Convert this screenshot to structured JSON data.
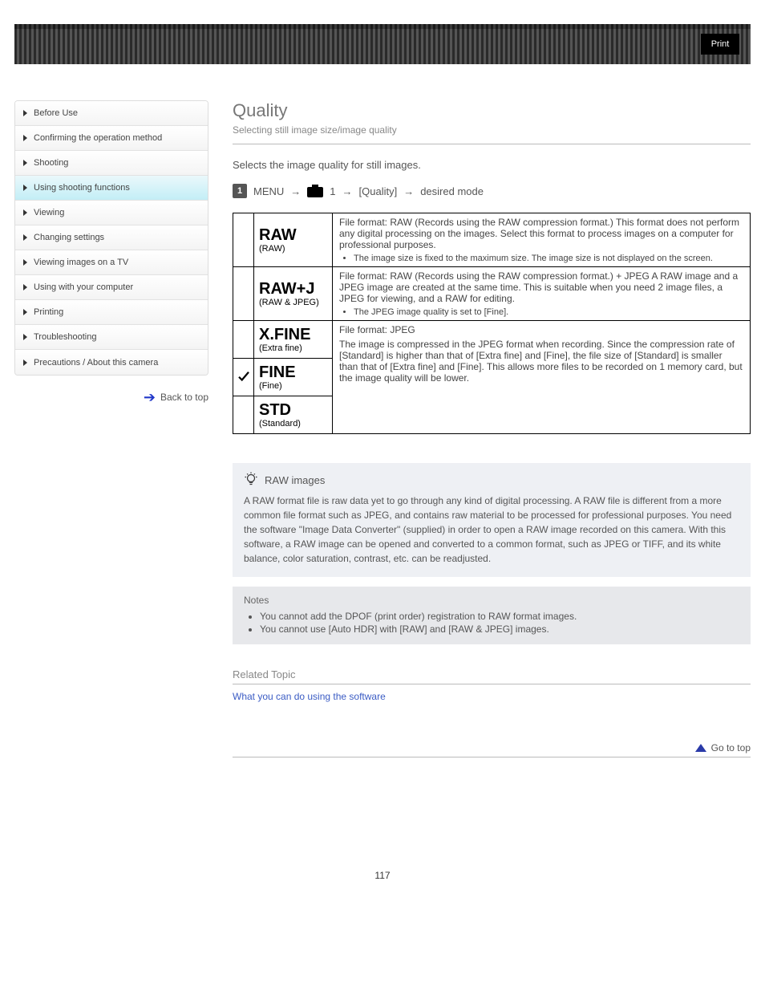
{
  "header": {
    "print_label": "Print"
  },
  "sidebar": {
    "items": [
      {
        "label": "Before Use"
      },
      {
        "label": "Confirming the operation method"
      },
      {
        "label": "Shooting"
      },
      {
        "label": "Using shooting functions"
      },
      {
        "label": "Viewing"
      },
      {
        "label": "Changing settings"
      },
      {
        "label": "Viewing images on a TV"
      },
      {
        "label": "Using with your computer"
      },
      {
        "label": "Printing"
      },
      {
        "label": "Troubleshooting"
      },
      {
        "label": "Precautions / About this camera"
      }
    ],
    "active_index": 3,
    "back_label": "Back to top"
  },
  "main": {
    "title": "Quality",
    "subtitle": "Selecting still image size/image quality",
    "lead": "Selects the image quality for still images.",
    "path": {
      "num": "1",
      "menu": "MENU",
      "arrow": "→",
      "menu_num": "1",
      "label": "[Quality]",
      "tail": "desired mode"
    },
    "table": {
      "rows": [
        {
          "icon": "RAW",
          "mode_sub": "(RAW)",
          "checked": false,
          "desc": "File format: RAW (Records using the RAW compression format.)\nThis format does not perform any digital processing on the images. Select this format to process images on a computer for professional purposes.",
          "bullet": "The image size is fixed to the maximum size. The image size is not displayed on the screen."
        },
        {
          "icon": "RAW+J",
          "mode_sub": "(RAW & JPEG)",
          "checked": false,
          "desc": "File format: RAW (Records using the RAW compression format.) + JPEG\nA RAW image and a JPEG image are created at the same time. This is suitable when you need 2 image files, a JPEG for viewing, and a RAW for editing.",
          "bullet": "The JPEG image quality is set to [Fine]."
        },
        {
          "icon": "X.FINE",
          "mode_sub": "(Extra fine)",
          "checked": false,
          "desc_rowspan_head": "File format: JPEG"
        },
        {
          "icon": "FINE",
          "mode_sub": "(Fine)",
          "checked": true,
          "desc_middle": "The image is compressed in the JPEG format when recording. Since the compression rate of [Standard] is higher than that of [Extra fine] and [Fine], the file size of [Standard] is smaller than that of [Extra fine] and [Fine]. This allows more files to be recorded on 1 memory card, but the image quality will be lower."
        },
        {
          "icon": "STD",
          "mode_sub": "(Standard)",
          "checked": false
        }
      ]
    },
    "tip": {
      "heading": "RAW images",
      "body": "A RAW format file is raw data yet to go through any kind of digital processing. A RAW file is different from a more common file format such as JPEG, and contains raw material to be processed for professional purposes.\nYou need the software \"Image Data Converter\" (supplied) in order to open a RAW image recorded on this camera. With this software, a RAW image can be opened and converted to a common format, such as JPEG or TIFF, and its white balance, color saturation, contrast, etc. can be readjusted."
    },
    "notes": {
      "heading": "Notes",
      "items": [
        "You cannot add the DPOF (print order) registration to RAW format images.",
        "You cannot use [Auto HDR] with [RAW] and [RAW & JPEG] images."
      ]
    },
    "related": {
      "heading": "Related Topic",
      "link": "What you can do using the software"
    },
    "to_top": "Go to top"
  },
  "page_number": "117"
}
